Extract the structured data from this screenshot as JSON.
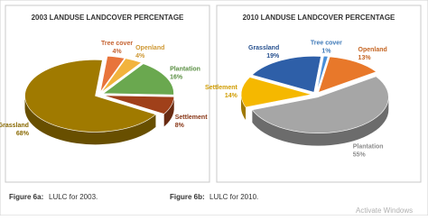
{
  "chart_data": [
    {
      "type": "pie",
      "title": "2003 LANDUSE LANDCOVER PERCENTAGE",
      "categories": [
        "Tree cover",
        "Openland",
        "Plantation",
        "Settlement",
        "Grassland"
      ],
      "values": [
        4,
        4,
        16,
        8,
        68
      ],
      "value_labels": [
        "4%",
        "4%",
        "16%",
        "8%",
        "68%"
      ],
      "colors": [
        "#e8743b",
        "#f2b33d",
        "#6aa84f",
        "#a0401a",
        "#a07a00"
      ]
    },
    {
      "type": "pie",
      "title": "2010  LANDUSE LANDCOVER PERCENTAGE",
      "categories": [
        "Tree  cover",
        "Openland",
        "Plantation",
        "Settlement",
        "Grassland"
      ],
      "values": [
        1,
        13,
        55,
        14,
        19
      ],
      "value_labels": [
        "1%",
        "13%",
        "55%",
        "14%",
        "19%"
      ],
      "colors": [
        "#4a90d9",
        "#e8782a",
        "#a6a6a6",
        "#f5b800",
        "#2e5fa8"
      ]
    }
  ],
  "captions": [
    {
      "label": "Figure 6a:",
      "text": "LULC for 2003."
    },
    {
      "label": "Figure 6b:",
      "text": "LULC for 2010."
    }
  ],
  "watermark": "Activate Windows"
}
